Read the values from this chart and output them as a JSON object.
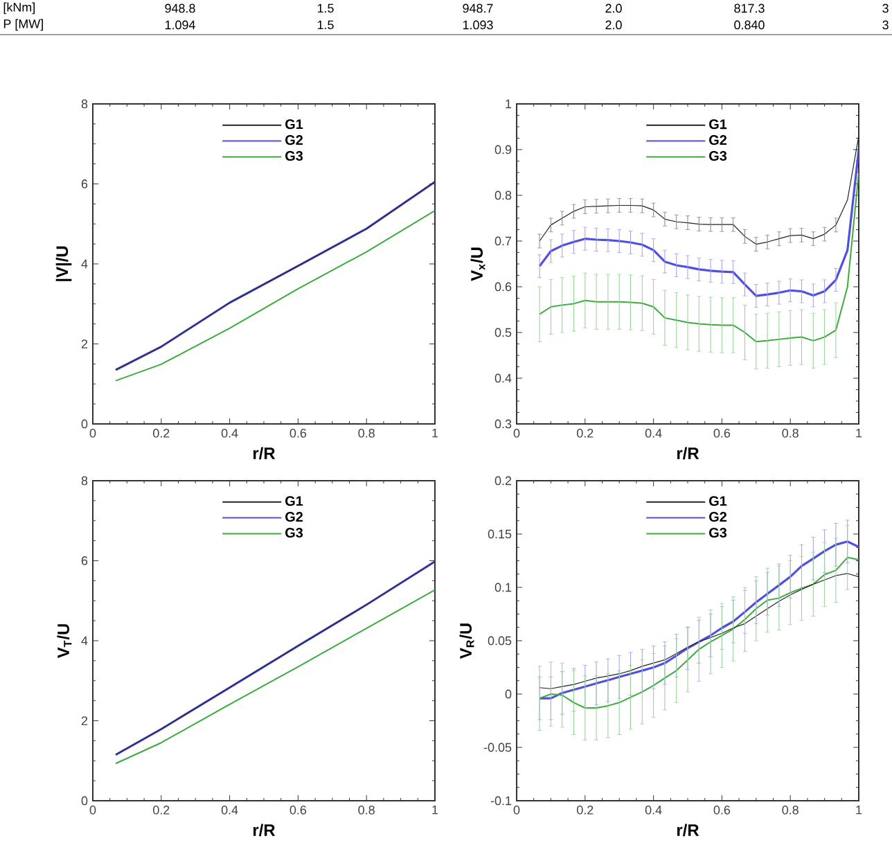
{
  "chart_data": [
    {
      "type": "other",
      "annotations": [
        "[kNm]",
        "948.8",
        "1.5",
        "948.7",
        "2.0",
        "817.3",
        "3",
        "P [MW]",
        "1.094",
        "1.5",
        "1.093",
        "2.0",
        "0.840",
        "3"
      ]
    },
    {
      "type": "line",
      "xlabel": "r/R",
      "ylabel": "|V|/U",
      "xlim": [
        0,
        1
      ],
      "ylim": [
        0,
        8
      ],
      "xticks": [
        0,
        0.2,
        0.4,
        0.6,
        0.8,
        1
      ],
      "yticks": [
        0,
        2,
        4,
        6,
        8
      ],
      "legend": "top",
      "x": [
        0.067,
        0.2,
        0.4,
        0.6,
        0.8,
        1
      ],
      "series": [
        {
          "name": "G1",
          "color": "#222222",
          "values": [
            1.35,
            1.93,
            3.03,
            3.95,
            4.88,
            6.05
          ]
        },
        {
          "name": "G2",
          "color": "#4f4fe0",
          "values": [
            1.35,
            1.93,
            3.03,
            3.95,
            4.88,
            6.05
          ]
        },
        {
          "name": "G3",
          "color": "#3caa3c",
          "values": [
            1.08,
            1.49,
            2.39,
            3.38,
            4.3,
            5.33
          ]
        }
      ]
    },
    {
      "type": "line",
      "xlabel": "r/R",
      "ylabel": "V$_{x}$/U",
      "xlim": [
        0,
        1
      ],
      "ylim": [
        0.3,
        1
      ],
      "xticks": [
        0,
        0.2,
        0.4,
        0.6,
        0.8,
        1
      ],
      "yticks": [
        0.3,
        0.4,
        0.5,
        0.6,
        0.7,
        0.8,
        0.9,
        1
      ],
      "legend": "top",
      "x": [
        0.067,
        0.1,
        0.133,
        0.167,
        0.2,
        0.233,
        0.267,
        0.3,
        0.333,
        0.367,
        0.4,
        0.433,
        0.467,
        0.5,
        0.533,
        0.567,
        0.6,
        0.633,
        0.667,
        0.7,
        0.733,
        0.767,
        0.8,
        0.833,
        0.867,
        0.9,
        0.933,
        0.967,
        1
      ],
      "series": [
        {
          "name": "G1",
          "color": "#222222",
          "values": [
            0.7,
            0.735,
            0.75,
            0.765,
            0.775,
            0.776,
            0.777,
            0.778,
            0.778,
            0.777,
            0.768,
            0.748,
            0.742,
            0.74,
            0.737,
            0.736,
            0.736,
            0.736,
            0.71,
            0.693,
            0.698,
            0.705,
            0.712,
            0.713,
            0.705,
            0.715,
            0.735,
            0.79,
            0.93
          ],
          "errors": [
            0.015,
            0.015,
            0.015,
            0.015,
            0.015,
            0.015,
            0.015,
            0.015,
            0.015,
            0.015,
            0.015,
            0.015,
            0.015,
            0.015,
            0.015,
            0.015,
            0.015,
            0.015,
            0.015,
            0.015,
            0.015,
            0.015,
            0.015,
            0.015,
            0.015,
            0.015,
            0.015,
            null,
            null
          ]
        },
        {
          "name": "G2",
          "color": "#4f4fe0",
          "values": [
            0.645,
            0.678,
            0.69,
            0.698,
            0.705,
            0.703,
            0.702,
            0.7,
            0.697,
            0.692,
            0.68,
            0.655,
            0.647,
            0.643,
            0.638,
            0.635,
            0.633,
            0.632,
            0.605,
            0.58,
            0.583,
            0.587,
            0.592,
            0.59,
            0.581,
            0.59,
            0.615,
            0.68,
            0.9
          ],
          "errors": [
            0.025,
            0.025,
            0.025,
            0.025,
            0.025,
            0.025,
            0.025,
            0.025,
            0.025,
            0.025,
            0.025,
            0.025,
            0.025,
            0.025,
            0.025,
            0.025,
            0.025,
            0.025,
            0.025,
            0.025,
            0.025,
            0.025,
            0.025,
            0.025,
            0.025,
            0.025,
            0.025,
            null,
            null
          ]
        },
        {
          "name": "G3",
          "color": "#3caa3c",
          "values": [
            0.54,
            0.556,
            0.56,
            0.563,
            0.57,
            0.567,
            0.567,
            0.567,
            0.566,
            0.564,
            0.556,
            0.532,
            0.527,
            0.522,
            0.519,
            0.517,
            0.516,
            0.516,
            0.5,
            0.48,
            0.482,
            0.485,
            0.488,
            0.49,
            0.482,
            0.49,
            0.505,
            0.6,
            0.85
          ],
          "errors": [
            0.06,
            0.06,
            0.06,
            0.06,
            0.06,
            0.06,
            0.06,
            0.06,
            0.06,
            0.06,
            0.06,
            0.06,
            0.06,
            0.06,
            0.06,
            0.06,
            0.06,
            0.06,
            0.06,
            0.06,
            0.06,
            0.06,
            0.06,
            0.06,
            0.06,
            0.06,
            0.06,
            null,
            null
          ]
        }
      ]
    },
    {
      "type": "line",
      "xlabel": "r/R",
      "ylabel": "V$_{T}$/U",
      "xlim": [
        0,
        1
      ],
      "ylim": [
        0,
        8
      ],
      "xticks": [
        0,
        0.2,
        0.4,
        0.6,
        0.8,
        1
      ],
      "yticks": [
        0,
        2,
        4,
        6,
        8
      ],
      "legend": "top",
      "x": [
        0.067,
        0.2,
        0.4,
        0.6,
        0.8,
        1
      ],
      "series": [
        {
          "name": "G1",
          "color": "#222222",
          "values": [
            1.15,
            1.79,
            2.83,
            3.87,
            4.9,
            5.98
          ]
        },
        {
          "name": "G2",
          "color": "#4f4fe0",
          "values": [
            1.15,
            1.79,
            2.83,
            3.87,
            4.9,
            5.98
          ]
        },
        {
          "name": "G3",
          "color": "#3caa3c",
          "values": [
            0.93,
            1.45,
            2.41,
            3.35,
            4.31,
            5.27
          ]
        }
      ]
    },
    {
      "type": "line",
      "xlabel": "r/R",
      "ylabel": "V$_{R}$/U",
      "xlim": [
        0,
        1
      ],
      "ylim": [
        -0.1,
        0.2
      ],
      "xticks": [
        0,
        0.2,
        0.4,
        0.6,
        0.8,
        1
      ],
      "yticks": [
        -0.1,
        -0.05,
        0,
        0.05,
        0.1,
        0.15,
        0.2
      ],
      "legend": "top",
      "x": [
        0.067,
        0.1,
        0.133,
        0.167,
        0.2,
        0.233,
        0.267,
        0.3,
        0.333,
        0.367,
        0.4,
        0.433,
        0.467,
        0.5,
        0.533,
        0.567,
        0.6,
        0.633,
        0.667,
        0.7,
        0.733,
        0.767,
        0.8,
        0.833,
        0.867,
        0.9,
        0.933,
        0.967,
        1
      ],
      "series": [
        {
          "name": "G1",
          "color": "#222222",
          "values": [
            0.006,
            0.005,
            0.007,
            0.009,
            0.012,
            0.015,
            0.017,
            0.019,
            0.022,
            0.026,
            0.029,
            0.032,
            0.038,
            0.044,
            0.049,
            0.053,
            0.057,
            0.062,
            0.066,
            0.073,
            0.08,
            0.087,
            0.093,
            0.098,
            0.103,
            0.107,
            0.111,
            0.113,
            0.11
          ]
        },
        {
          "name": "G2",
          "color": "#4f4fe0",
          "values": [
            -0.004,
            -0.004,
            0.001,
            0.004,
            0.007,
            0.01,
            0.013,
            0.016,
            0.019,
            0.022,
            0.025,
            0.029,
            0.036,
            0.043,
            0.049,
            0.055,
            0.062,
            0.068,
            0.077,
            0.086,
            0.094,
            0.102,
            0.11,
            0.12,
            0.127,
            0.134,
            0.14,
            0.143,
            0.138
          ],
          "errors": [
            0.02,
            0.02,
            0.02,
            0.02,
            0.02,
            0.02,
            0.02,
            0.02,
            0.02,
            0.02,
            0.02,
            0.02,
            0.02,
            0.02,
            0.02,
            0.02,
            0.02,
            0.02,
            0.02,
            0.02,
            0.02,
            0.02,
            0.02,
            0.02,
            0.02,
            0.02,
            0.02,
            0.02,
            null
          ]
        },
        {
          "name": "G3",
          "color": "#3caa3c",
          "values": [
            -0.004,
            0.0,
            -0.001,
            -0.008,
            -0.013,
            -0.013,
            -0.011,
            -0.008,
            -0.003,
            0.002,
            0.008,
            0.015,
            0.022,
            0.032,
            0.042,
            0.049,
            0.055,
            0.061,
            0.07,
            0.08,
            0.088,
            0.09,
            0.095,
            0.099,
            0.103,
            0.112,
            0.116,
            0.128,
            0.126
          ],
          "errors": [
            0.03,
            0.03,
            0.03,
            0.03,
            0.03,
            0.03,
            0.03,
            0.03,
            0.03,
            0.03,
            0.03,
            0.03,
            0.03,
            0.03,
            0.03,
            0.03,
            0.03,
            0.03,
            0.03,
            0.03,
            0.03,
            0.03,
            0.03,
            0.03,
            0.03,
            0.03,
            0.03,
            0.03,
            null
          ]
        }
      ]
    }
  ]
}
